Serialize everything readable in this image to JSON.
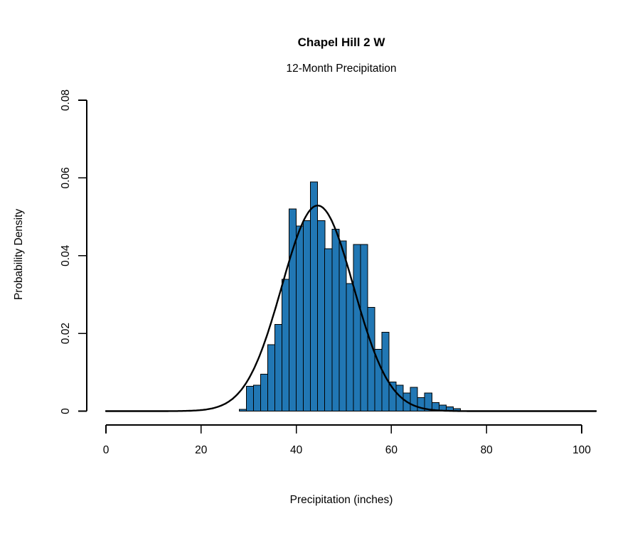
{
  "chart_data": {
    "type": "bar",
    "subtype": "histogram-with-normal-curve",
    "title": "Chapel Hill 2 W",
    "subtitle": "12-Month Precipitation",
    "xlabel": "Precipitation (inches)",
    "ylabel": "Probability Density",
    "xlim": [
      0,
      103
    ],
    "ylim": [
      0,
      0.08
    ],
    "grid": false,
    "legend": null,
    "x_tick_values": [
      0,
      20,
      40,
      60,
      80,
      100
    ],
    "x_tick_labels": [
      "0",
      "20",
      "40",
      "60",
      "80",
      "100"
    ],
    "y_tick_values": [
      0,
      0.02,
      0.04,
      0.06,
      0.08
    ],
    "y_tick_labels": [
      "0",
      "0.02",
      "0.04",
      "0.06",
      "0.08"
    ],
    "bin_width": 1.5,
    "bins": [
      {
        "start": 28.0,
        "density": 0.0005
      },
      {
        "start": 29.5,
        "density": 0.0064
      },
      {
        "start": 31.0,
        "density": 0.0067
      },
      {
        "start": 32.5,
        "density": 0.0095
      },
      {
        "start": 34.0,
        "density": 0.0171
      },
      {
        "start": 35.5,
        "density": 0.0223
      },
      {
        "start": 37.0,
        "density": 0.0339
      },
      {
        "start": 38.5,
        "density": 0.052
      },
      {
        "start": 40.0,
        "density": 0.0476
      },
      {
        "start": 41.5,
        "density": 0.049
      },
      {
        "start": 43.0,
        "density": 0.059
      },
      {
        "start": 44.5,
        "density": 0.049
      },
      {
        "start": 46.0,
        "density": 0.0418
      },
      {
        "start": 47.5,
        "density": 0.0468
      },
      {
        "start": 49.0,
        "density": 0.0438
      },
      {
        "start": 50.5,
        "density": 0.0328
      },
      {
        "start": 52.0,
        "density": 0.0429
      },
      {
        "start": 53.5,
        "density": 0.0429
      },
      {
        "start": 55.0,
        "density": 0.0267
      },
      {
        "start": 56.5,
        "density": 0.0159
      },
      {
        "start": 58.0,
        "density": 0.0203
      },
      {
        "start": 59.5,
        "density": 0.0075
      },
      {
        "start": 61.0,
        "density": 0.0067
      },
      {
        "start": 62.5,
        "density": 0.0047
      },
      {
        "start": 64.0,
        "density": 0.0061
      },
      {
        "start": 65.5,
        "density": 0.0035
      },
      {
        "start": 67.0,
        "density": 0.0047
      },
      {
        "start": 68.5,
        "density": 0.0022
      },
      {
        "start": 70.0,
        "density": 0.0016
      },
      {
        "start": 71.5,
        "density": 0.0011
      },
      {
        "start": 73.0,
        "density": 0.0006
      }
    ],
    "normal_curve": {
      "mean": 44.5,
      "sd": 7.54,
      "peak_density": 0.0529
    },
    "colors": {
      "bar_fill": "#2177b4",
      "bar_border": "#000000",
      "curve": "#000000",
      "axis": "#000000",
      "text": "#000000",
      "background": "#ffffff"
    }
  }
}
